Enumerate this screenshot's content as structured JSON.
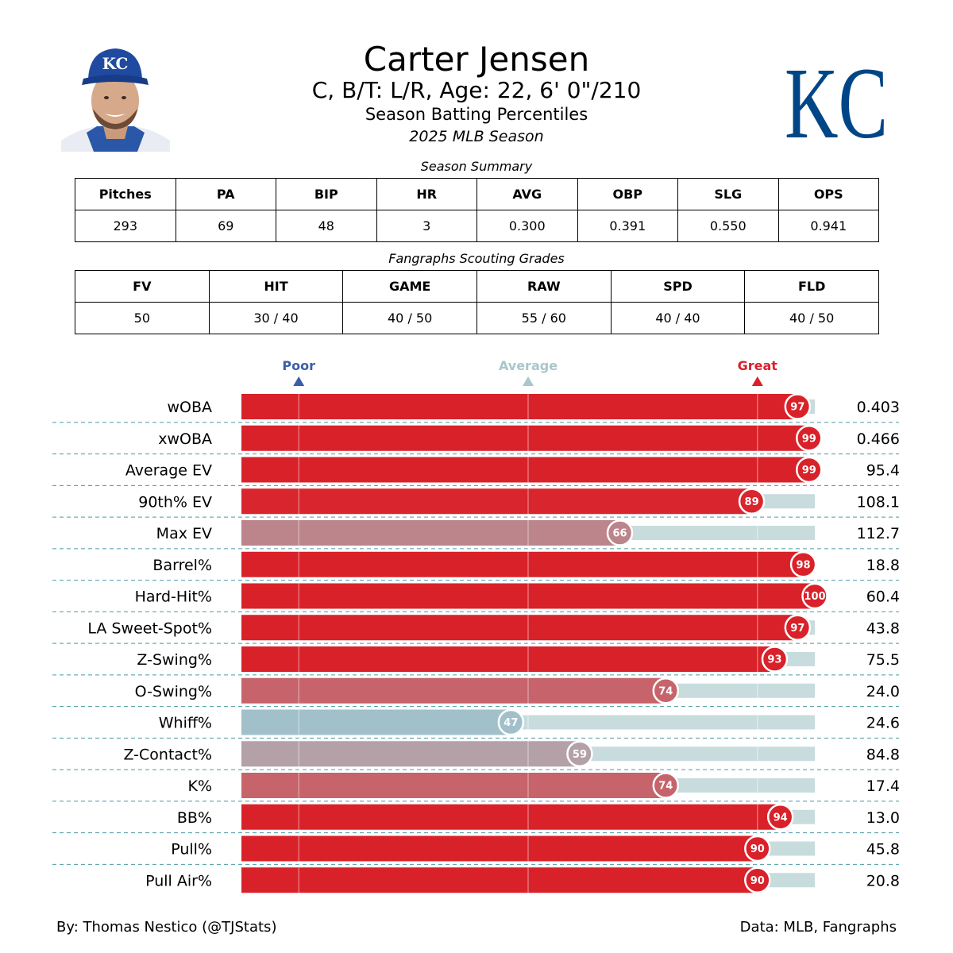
{
  "header": {
    "name": "Carter Jensen",
    "subtitle": "C, B/T: L/R, Age: 22, 6' 0\"/210",
    "report_title": "Season Batting Percentiles",
    "season": "2025 MLB Season",
    "team_logo_text": "KC",
    "cap_logo_text": "KC"
  },
  "summary": {
    "caption": "Season Summary",
    "headers": [
      "Pitches",
      "PA",
      "BIP",
      "HR",
      "AVG",
      "OBP",
      "SLG",
      "OPS"
    ],
    "values": [
      "293",
      "69",
      "48",
      "3",
      "0.300",
      "0.391",
      "0.550",
      "0.941"
    ]
  },
  "grades": {
    "caption": "Fangraphs Scouting Grades",
    "headers": [
      "FV",
      "HIT",
      "GAME",
      "RAW",
      "SPD",
      "FLD"
    ],
    "values": [
      "50",
      "30 / 40",
      "40 / 50",
      "55 / 60",
      "40 / 40",
      "40 / 50"
    ]
  },
  "colors": {
    "poor": "#3a5ea8",
    "average": "#a9c6cc",
    "great": "#d9212a",
    "track": "#c8dcdd",
    "separator": "#4a9aa4",
    "team_blue": "#004687"
  },
  "chart_data": {
    "type": "bar",
    "orientation": "horizontal",
    "xlim": [
      0,
      100
    ],
    "markers": [
      {
        "label": "Poor",
        "value": 10,
        "color": "#3a5ea8"
      },
      {
        "label": "Average",
        "value": 50,
        "color": "#a9c6cc"
      },
      {
        "label": "Great",
        "value": 90,
        "color": "#d9212a"
      }
    ],
    "categories": [
      "wOBA",
      "xwOBA",
      "Average EV",
      "90th% EV",
      "Max EV",
      "Barrel%",
      "Hard-Hit%",
      "LA Sweet-Spot%",
      "Z-Swing%",
      "O-Swing%",
      "Whiff%",
      "Z-Contact%",
      "K%",
      "BB%",
      "Pull%",
      "Pull Air%"
    ],
    "percentiles": [
      97,
      99,
      99,
      89,
      66,
      98,
      100,
      97,
      93,
      74,
      47,
      59,
      74,
      94,
      90,
      90
    ],
    "stat_values": [
      "0.403",
      "0.466",
      "95.4",
      "108.1",
      "112.7",
      "18.8",
      "60.4",
      "43.8",
      "75.5",
      "24.0",
      "24.6",
      "84.8",
      "17.4",
      "13.0",
      "45.8",
      "20.8"
    ]
  },
  "footer": {
    "left": "By: Thomas Nestico (@TJStats)",
    "right": "Data: MLB, Fangraphs"
  }
}
